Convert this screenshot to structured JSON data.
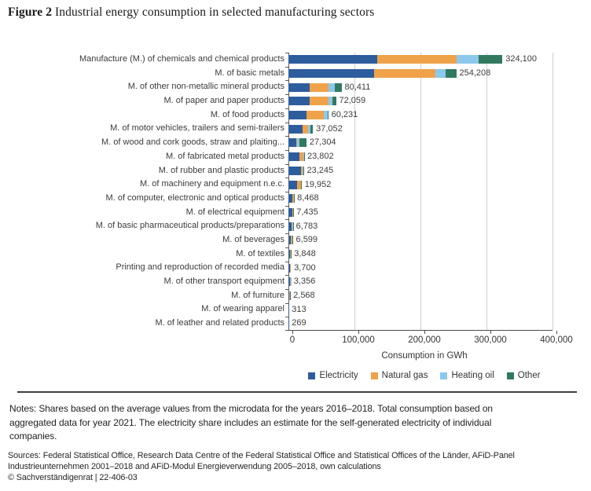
{
  "figure": {
    "label": "Figure 2",
    "title": " Industrial energy consumption in selected manufacturing sectors"
  },
  "chart_data": {
    "type": "bar",
    "orientation": "horizontal",
    "stacked": true,
    "xlabel": "Consumption in GWh",
    "xlim": [
      0,
      400000
    ],
    "xticks": [
      0,
      100000,
      200000,
      300000,
      400000
    ],
    "xtick_labels": [
      "0",
      "100,000",
      "200,000",
      "300,000",
      "400,000"
    ],
    "grid": "vertical-gridlines-on",
    "legend_position": "bottom",
    "categories": [
      "Manufacture (M.) of chemicals and chemical products",
      "M. of basic metals",
      "M. of other non-metallic mineral products",
      "M. of paper and paper products",
      "M. of food products",
      "M. of motor vehicles, trailers and semi-trailers",
      "M. of wood and cork goods, straw and plaiting...",
      "M. of fabricated metal products",
      "M. of rubber and plastic products",
      "M. of machinery and equipment n.e.c.",
      "M. of computer, electronic and optical products",
      "M. of electrical equipment",
      "M. of basic pharmaceutical products/preparations",
      "M. of beverages",
      "M. of textiles",
      "Printing and reproduction of recorded media",
      "M. of other transport equipment",
      "M. of furniture",
      "M. of wearing apparel",
      "M. of leather and related products"
    ],
    "total_labels": [
      "324,100",
      "254,208",
      "80,411",
      "72,059",
      "60,231",
      "37,052",
      "27,304",
      "23,802",
      "23,245",
      "19,952",
      "8,468",
      "7,435",
      "6,783",
      "6,599",
      "3,848",
      "3,700",
      "3,356",
      "2,568",
      "313",
      "269"
    ],
    "totals": [
      324100,
      254208,
      80411,
      72059,
      60231,
      37052,
      27304,
      23802,
      23245,
      19952,
      8468,
      7435,
      6783,
      6599,
      3848,
      3700,
      3356,
      2568,
      313,
      269
    ],
    "series": [
      {
        "name": "Electricity",
        "color": "#2e5d9d",
        "values": [
          134500,
          129400,
          32500,
          32500,
          27400,
          21500,
          12300,
          17000,
          18500,
          13000,
          6500,
          5800,
          4800,
          3600,
          2400,
          2800,
          2300,
          1600,
          200,
          180
        ]
      },
      {
        "name": "Natural gas",
        "color": "#f0a24b",
        "values": [
          120300,
          93600,
          28500,
          28500,
          25800,
          8500,
          500,
          5500,
          3500,
          5500,
          1500,
          1300,
          1500,
          2500,
          1200,
          800,
          900,
          700,
          80,
          60
        ]
      },
      {
        "name": "Heating oil",
        "color": "#8cc8ec",
        "values": [
          32900,
          14700,
          9200,
          6000,
          6700,
          3000,
          3900,
          800,
          700,
          1000,
          300,
          200,
          300,
          400,
          150,
          60,
          100,
          150,
          20,
          20
        ]
      },
      {
        "name": "Other",
        "color": "#317a60",
        "values": [
          36400,
          16508,
          10211,
          5059,
          331,
          4052,
          10604,
          502,
          545,
          452,
          168,
          135,
          183,
          99,
          98,
          40,
          56,
          118,
          13,
          9
        ]
      }
    ]
  },
  "notes": "Notes: Shares based on the average values from the microdata for the years 2016–2018. Total consumption based on\naggregated data for year 2021. The electricity share includes an estimate for the self-generated electricity of individual\ncompanies.",
  "sources": "Sources: Federal Statistical Office, Research Data Centre of the Federal Statistical Office and Statistical Offices of the Länder, AFiD-Panel\nIndustrieunternehmen 2001–2018 and AFiD-Modul Energieverwendung 2005–2018, own calculations",
  "copyright": "© Sachverständigenrat | 22-406-03"
}
